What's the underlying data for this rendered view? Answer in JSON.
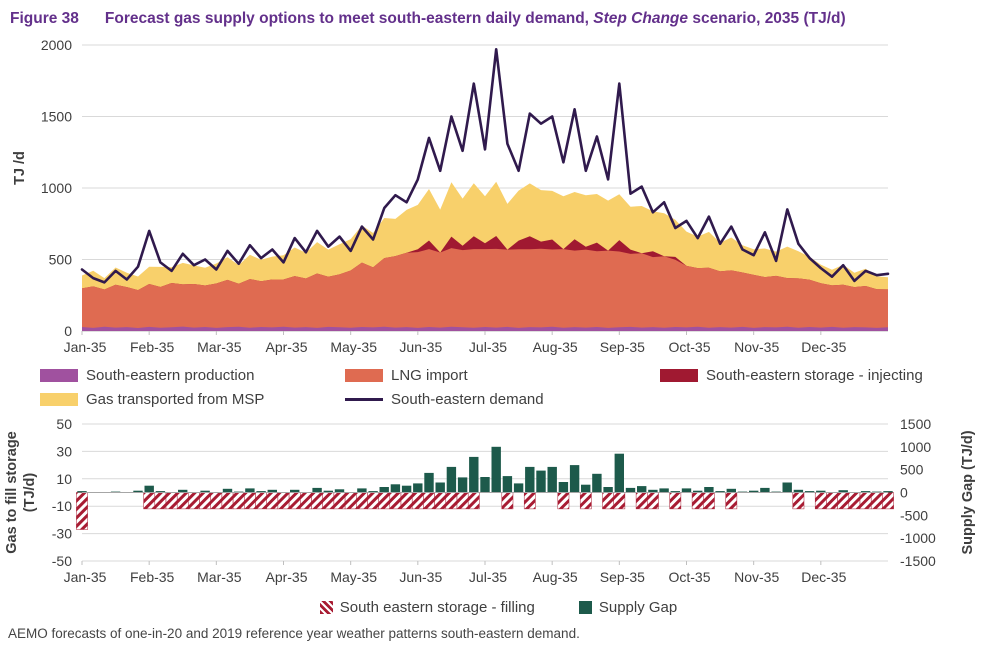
{
  "title": {
    "figure_label": "Figure 38",
    "text_pre": "Forecast gas supply options to meet south-eastern daily demand, ",
    "text_italic": "Step Change",
    "text_post": " scenario, 2035 (TJ/d)"
  },
  "footnote": "AEMO forecasts of one-in-20 and 2019 reference year weather patterns south-eastern demand.",
  "colors": {
    "title_purple": "#63308B",
    "production": "#A0519F",
    "lng_import": "#DF6B51",
    "storage_injecting": "#A01931",
    "msp": "#F8D06B",
    "demand_line": "#301A4D",
    "supply_gap": "#1D5A4B",
    "storage_filling": "#A81C33",
    "gridline": "#D9D9D9",
    "axis_line": "#BFBFBF",
    "axis_text": "#3F3F3F"
  },
  "chart_data": [
    {
      "type": "area",
      "subtype": "stacked-area-with-line",
      "categories_x": [
        "Jan-35",
        "Feb-35",
        "Mar-35",
        "Apr-35",
        "May-35",
        "Jun-35",
        "Jul-35",
        "Aug-35",
        "Sep-35",
        "Oct-35",
        "Nov-35",
        "Dec-35"
      ],
      "points_per_month": 6,
      "ylabel": "TJ /d",
      "ylim": [
        0,
        2000
      ],
      "yticks": [
        0,
        500,
        1000,
        1500,
        2000
      ],
      "grid": true,
      "legend_position": "below",
      "series": [
        {
          "name": "South-eastern production",
          "role": "stacked-area",
          "color": "#A0519F",
          "values": [
            28,
            22,
            30,
            24,
            27,
            21,
            29,
            23,
            26,
            31,
            24,
            28,
            22,
            27,
            30,
            23,
            28,
            25,
            30,
            24,
            27,
            22,
            29,
            26,
            23,
            28,
            25,
            30,
            24,
            27,
            22,
            28,
            24,
            30,
            26,
            23,
            28,
            24,
            29,
            22,
            27,
            25,
            30,
            23,
            27,
            24,
            28,
            22,
            26,
            29,
            24,
            27,
            23,
            28,
            25,
            30,
            23,
            27,
            24,
            29,
            22,
            27,
            25,
            30,
            23,
            28,
            24,
            29,
            23,
            27,
            25,
            22,
            26
          ]
        },
        {
          "name": "LNG import",
          "role": "stacked-area",
          "color": "#DF6B51",
          "values": [
            270,
            290,
            260,
            300,
            280,
            265,
            300,
            285,
            310,
            295,
            305,
            290,
            310,
            330,
            300,
            340,
            320,
            335,
            330,
            360,
            340,
            380,
            350,
            370,
            400,
            450,
            420,
            480,
            500,
            520,
            530,
            545,
            525,
            550,
            540,
            550,
            545,
            550,
            540,
            550,
            545,
            550,
            540,
            550,
            535,
            545,
            530,
            540,
            530,
            510,
            520,
            490,
            500,
            470,
            430,
            410,
            420,
            390,
            400,
            380,
            370,
            350,
            360,
            340,
            345,
            330,
            310,
            290,
            300,
            280,
            290,
            270,
            265
          ]
        },
        {
          "name": "South-eastern storage - injecting",
          "role": "stacked-area",
          "color": "#A01931",
          "values": [
            0,
            0,
            0,
            0,
            0,
            0,
            0,
            0,
            0,
            0,
            0,
            0,
            0,
            0,
            0,
            0,
            0,
            0,
            0,
            0,
            0,
            0,
            0,
            0,
            0,
            0,
            0,
            0,
            0,
            0,
            20,
            60,
            0,
            80,
            30,
            90,
            40,
            90,
            0,
            60,
            90,
            50,
            70,
            0,
            80,
            20,
            60,
            0,
            80,
            30,
            0,
            40,
            0,
            20,
            0,
            0,
            0,
            0,
            0,
            0,
            0,
            0,
            0,
            0,
            0,
            0,
            0,
            0,
            0,
            0,
            0,
            0,
            0
          ]
        },
        {
          "name": "Gas transported from MSP",
          "role": "stacked-area",
          "color": "#F8D06B",
          "values": [
            90,
            110,
            80,
            120,
            100,
            95,
            120,
            140,
            110,
            150,
            130,
            125,
            140,
            160,
            130,
            170,
            150,
            160,
            170,
            200,
            180,
            220,
            190,
            210,
            220,
            260,
            240,
            280,
            260,
            300,
            310,
            360,
            300,
            380,
            330,
            370,
            330,
            380,
            320,
            350,
            370,
            360,
            340,
            370,
            330,
            360,
            340,
            350,
            320,
            300,
            330,
            280,
            300,
            260,
            240,
            220,
            250,
            200,
            230,
            190,
            180,
            200,
            170,
            220,
            190,
            160,
            130,
            110,
            140,
            100,
            120,
            90,
            85
          ]
        },
        {
          "name": "South-eastern demand",
          "role": "line",
          "color": "#301A4D",
          "values": [
            430,
            370,
            340,
            420,
            360,
            450,
            700,
            480,
            420,
            540,
            460,
            500,
            430,
            560,
            470,
            600,
            510,
            570,
            480,
            650,
            550,
            700,
            590,
            660,
            560,
            730,
            640,
            860,
            950,
            900,
            1060,
            1350,
            1120,
            1500,
            1260,
            1730,
            1270,
            1970,
            1310,
            1120,
            1520,
            1450,
            1500,
            1180,
            1550,
            1120,
            1360,
            1060,
            1730,
            960,
            1010,
            830,
            900,
            720,
            770,
            650,
            800,
            610,
            730,
            570,
            530,
            690,
            490,
            850,
            610,
            510,
            440,
            380,
            460,
            350,
            420,
            390,
            400
          ]
        }
      ]
    },
    {
      "type": "bar",
      "subtype": "dual-axis-bars",
      "categories_x": [
        "Jan-35",
        "Feb-35",
        "Mar-35",
        "Apr-35",
        "May-35",
        "Jun-35",
        "Jul-35",
        "Aug-35",
        "Sep-35",
        "Oct-35",
        "Nov-35",
        "Dec-35"
      ],
      "points_per_month": 6,
      "left_ylabel_line1": "Gas to fill storage",
      "left_ylabel_line2": "(TJ/d)",
      "left_ylim": [
        -50,
        50
      ],
      "left_yticks": [
        50,
        30,
        10,
        -10,
        -30,
        -50
      ],
      "right_ylabel": "Supply Gap (TJ/d)",
      "right_ylim": [
        -1500,
        1500
      ],
      "right_yticks": [
        1500,
        1000,
        500,
        0,
        -500,
        -1000,
        -1500
      ],
      "grid": true,
      "legend_position": "below",
      "series": [
        {
          "name": "South eastern storage - filling",
          "axis": "left",
          "style": "hatched",
          "color": "#A81C33",
          "values": [
            -27,
            0,
            0,
            0,
            0,
            0,
            -12,
            -12,
            -12,
            -12,
            -12,
            -12,
            -12,
            -12,
            -12,
            -12,
            -12,
            -12,
            -12,
            -12,
            -12,
            -12,
            -12,
            -12,
            -12,
            -12,
            -12,
            -12,
            -12,
            -12,
            -12,
            -12,
            -12,
            -12,
            -12,
            -12,
            0,
            0,
            -12,
            0,
            -12,
            0,
            0,
            -12,
            0,
            -12,
            0,
            -12,
            -12,
            0,
            -12,
            -12,
            0,
            -12,
            0,
            -12,
            -12,
            0,
            -12,
            0,
            0,
            0,
            0,
            0,
            -12,
            0,
            -12,
            -12,
            -12,
            -12,
            -12,
            -12,
            -12
          ]
        },
        {
          "name": "Supply Gap",
          "axis": "right",
          "style": "solid",
          "color": "#1D5A4B",
          "values": [
            30,
            10,
            0,
            20,
            0,
            40,
            150,
            30,
            0,
            60,
            10,
            40,
            0,
            80,
            20,
            90,
            30,
            60,
            0,
            60,
            10,
            100,
            40,
            70,
            0,
            90,
            30,
            120,
            180,
            150,
            200,
            430,
            220,
            560,
            330,
            780,
            340,
            1000,
            360,
            200,
            560,
            480,
            560,
            230,
            600,
            170,
            410,
            120,
            850,
            100,
            140,
            60,
            90,
            30,
            90,
            40,
            120,
            30,
            80,
            20,
            40,
            100,
            20,
            220,
            60,
            30,
            40,
            10,
            50,
            0,
            30,
            20,
            30
          ]
        }
      ]
    }
  ]
}
